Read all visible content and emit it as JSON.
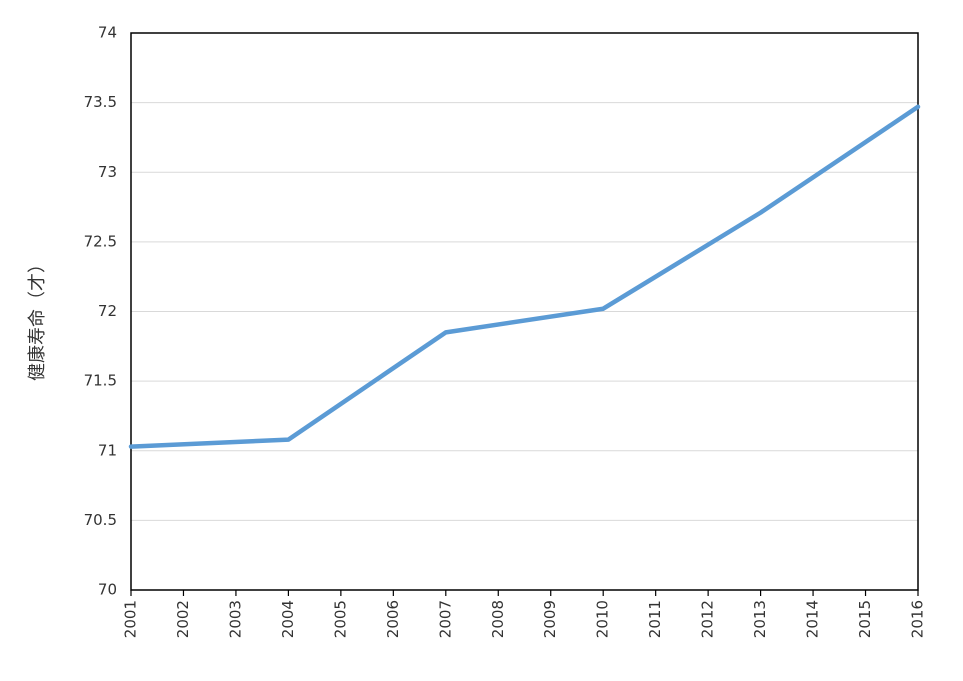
{
  "chart_data": {
    "type": "line",
    "y_label": "健康寿命（才）",
    "x": [
      2001,
      2004,
      2007,
      2010,
      2013,
      2016
    ],
    "series": [
      {
        "name": null,
        "color": "#5b9bd5",
        "values": [
          71.03,
          71.08,
          71.85,
          72.02,
          72.71,
          73.47
        ]
      }
    ],
    "xlim": [
      2001,
      2016
    ],
    "xticks": [
      2001,
      2002,
      2003,
      2004,
      2005,
      2006,
      2007,
      2008,
      2009,
      2010,
      2011,
      2012,
      2013,
      2014,
      2015,
      2016
    ],
    "ylim": [
      70,
      74
    ],
    "yticks": [
      70,
      70.5,
      71,
      71.5,
      72,
      72.5,
      73,
      73.5,
      74
    ],
    "grid": true
  }
}
